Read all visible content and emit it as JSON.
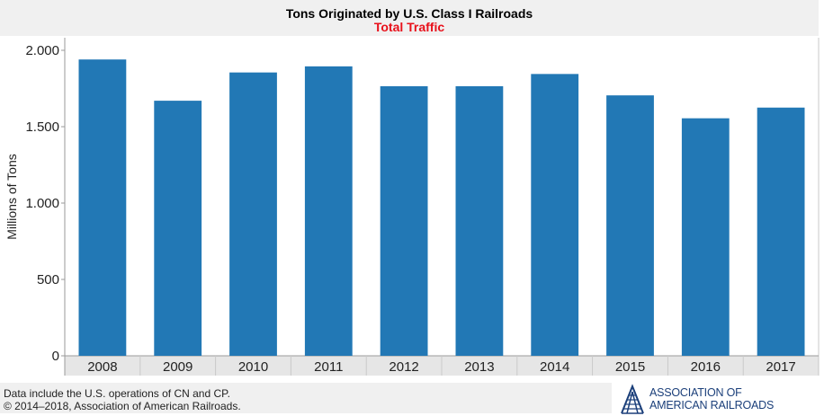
{
  "chart_data": {
    "type": "bar",
    "title": "Tons Originated by U.S. Class I Railroads",
    "subtitle": "Total Traffic",
    "xlabel": "",
    "ylabel": "Millions of Tons",
    "categories": [
      "2008",
      "2009",
      "2010",
      "2011",
      "2012",
      "2013",
      "2014",
      "2015",
      "2016",
      "2017"
    ],
    "values": [
      1940,
      1670,
      1855,
      1895,
      1765,
      1765,
      1845,
      1705,
      1555,
      1625
    ],
    "ylim": [
      0,
      2000
    ],
    "yticks": [
      0,
      500,
      1000,
      1500,
      2000
    ],
    "ytick_labels": [
      "0",
      "500",
      "1.000",
      "1.500",
      "2.000"
    ],
    "grid": false,
    "colors": {
      "bar": "#2278b5",
      "subtitle": "#e8101a"
    }
  },
  "footer": {
    "note": "Data include the U.S. operations of CN and CP.",
    "copyright": "© 2014–2018, Association of American Railroads.",
    "logo_line1": "ASSOCIATION OF",
    "logo_line2": "AMERICAN RAILROADS",
    "logo_icon": "railroad-track-icon"
  }
}
